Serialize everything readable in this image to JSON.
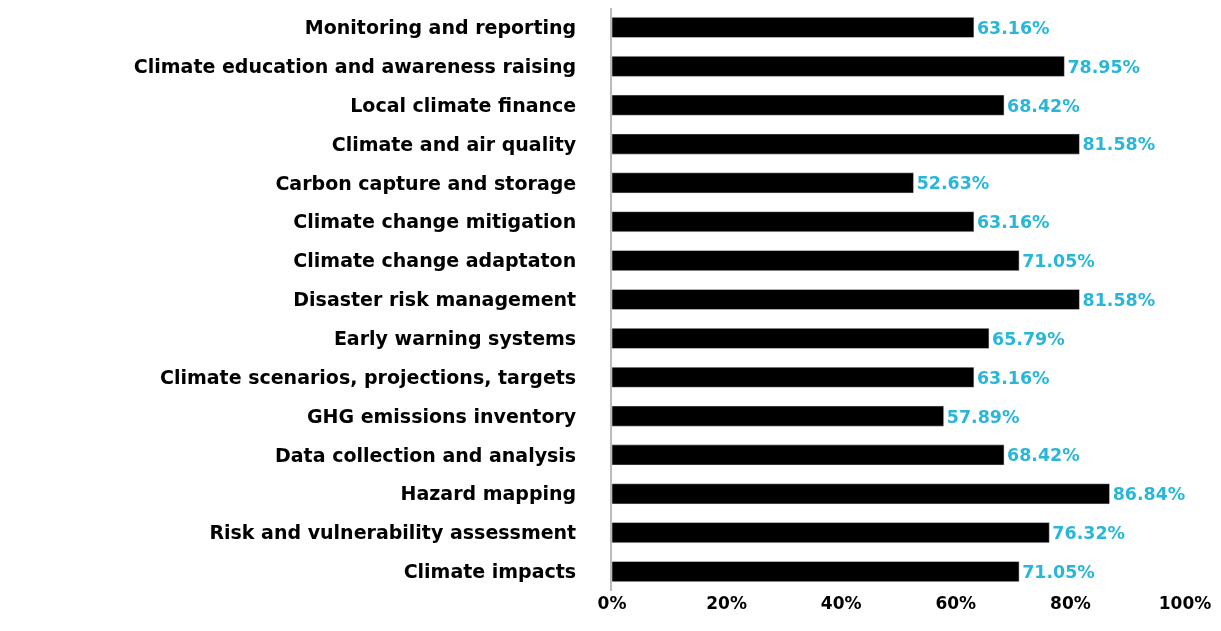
{
  "chart_data": {
    "type": "bar",
    "orientation": "horizontal",
    "categories": [
      "Monitoring and reporting",
      "Climate education and awareness raising",
      "Local climate finance",
      "Climate and air quality",
      "Carbon capture and storage",
      "Climate change mitigation",
      "Climate change adaptaton",
      "Disaster risk management",
      "Early warning systems",
      "Climate scenarios, projections, targets",
      "GHG emissions inventory",
      "Data collection and analysis",
      "Hazard mapping",
      "Risk and vulnerability assessment",
      "Climate impacts"
    ],
    "values": [
      63.16,
      78.95,
      68.42,
      81.58,
      52.63,
      63.16,
      71.05,
      81.58,
      65.79,
      63.16,
      57.89,
      68.42,
      86.84,
      76.32,
      71.05
    ],
    "value_labels": [
      "63.16%",
      "78.95%",
      "68.42%",
      "81.58%",
      "52.63%",
      "63.16%",
      "71.05%",
      "81.58%",
      "65.79%",
      "63.16%",
      "57.89%",
      "68.42%",
      "86.84%",
      "76.32%",
      "71.05%"
    ],
    "color": "#000000",
    "xlim": [
      0,
      100
    ],
    "xticks": [
      {
        "value": 0,
        "label": "0%"
      },
      {
        "value": 20,
        "label": "20%"
      },
      {
        "value": 40,
        "label": "40%"
      },
      {
        "value": 60,
        "label": "60%"
      },
      {
        "value": 80,
        "label": "80%"
      },
      {
        "value": 100,
        "label": "100%"
      }
    ],
    "legend": false
  }
}
